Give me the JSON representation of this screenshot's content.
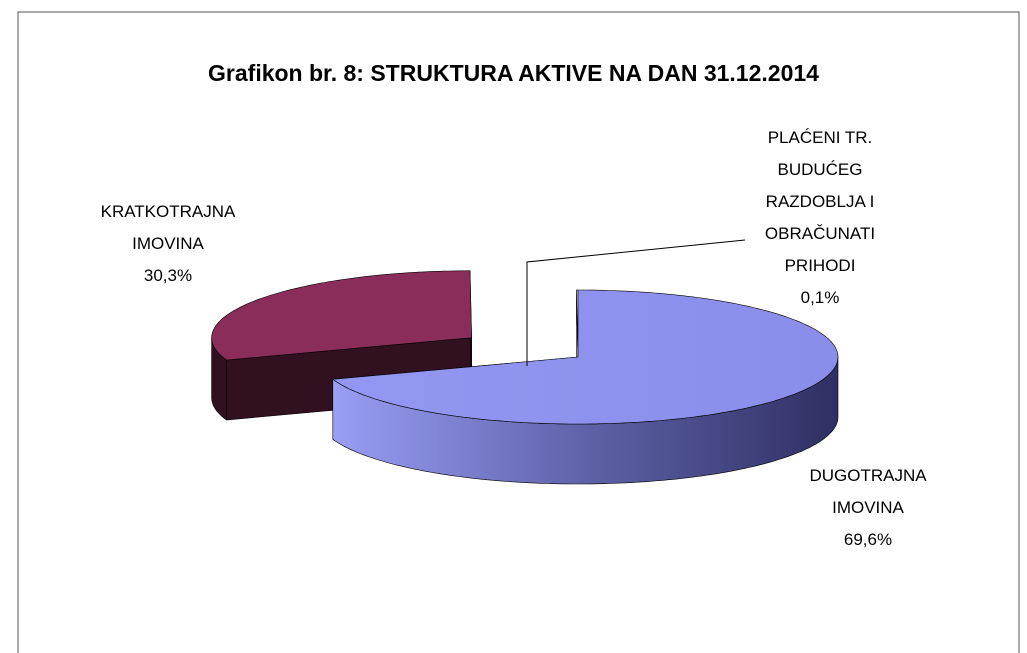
{
  "chart_data": {
    "type": "pie",
    "title": "Grafikon br.  8: STRUKTURA AKTIVE NA DAN 31.12.2014",
    "categories": [
      "DUGOTRAJNA IMOVINA",
      "KRATKOTRAJNA IMOVINA",
      "PLAĆENI TR. BUDUĆEG RAZDOBLJA I OBRAČUNATI PRIHODI"
    ],
    "values": [
      69.6,
      30.3,
      0.1
    ],
    "value_labels": [
      "69,6%",
      "30,3%",
      "0,1%"
    ],
    "colors": [
      "#8b8ff0",
      "#8b2d5a",
      "#ffffff"
    ]
  }
}
